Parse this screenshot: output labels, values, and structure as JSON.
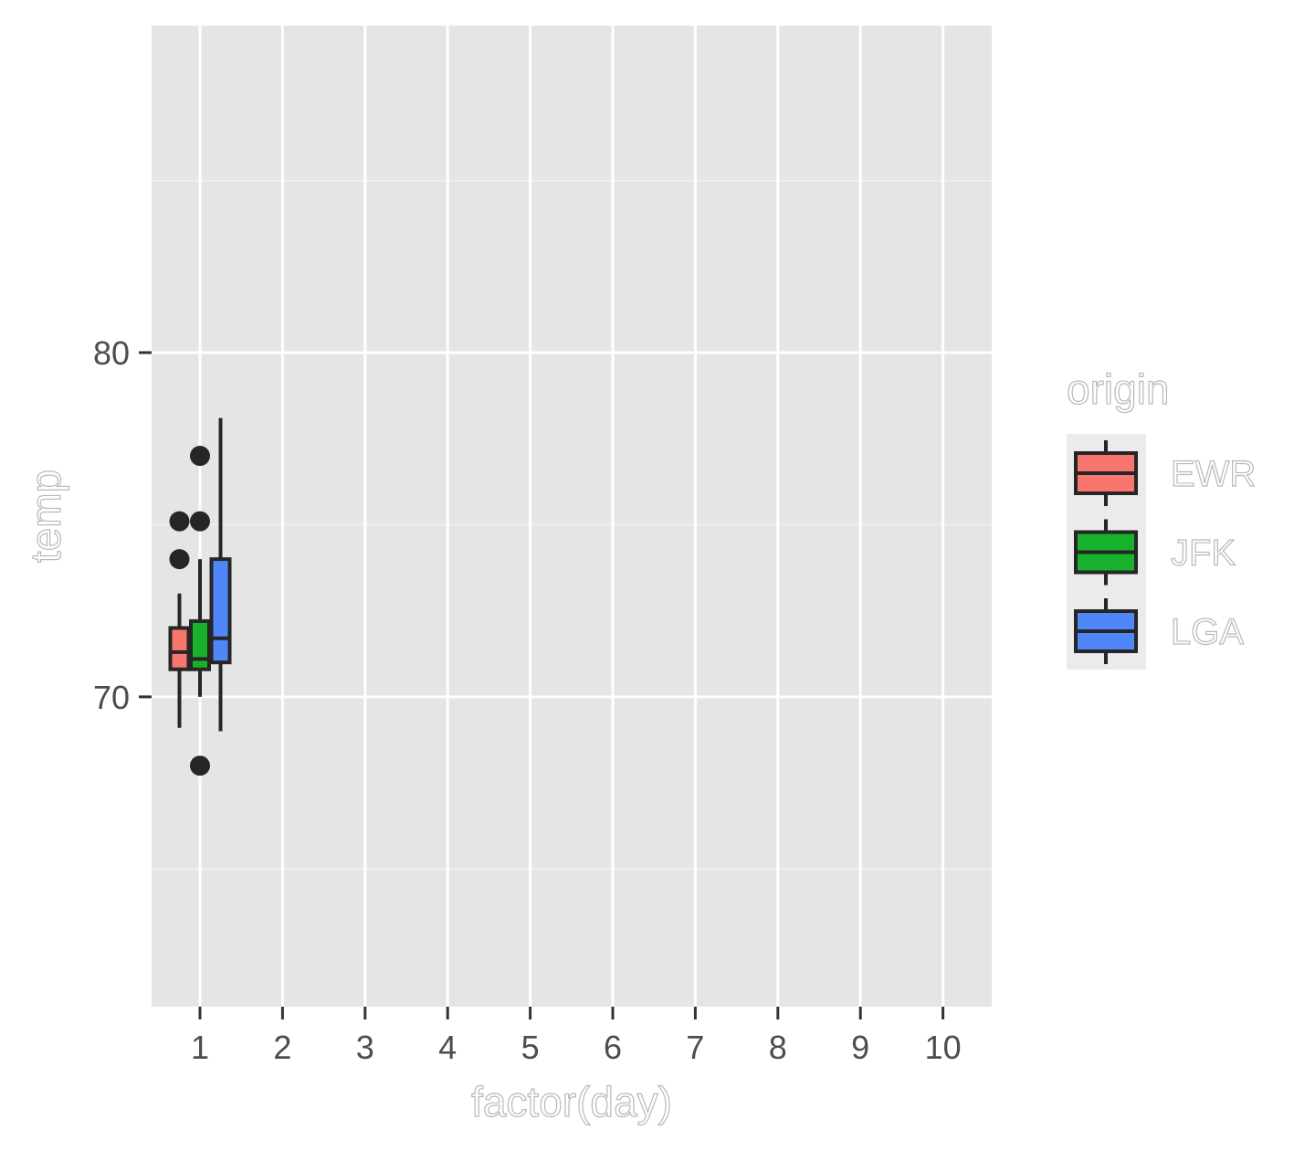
{
  "chart_data": {
    "type": "boxplot",
    "xlabel": "factor(day)",
    "ylabel": "temp",
    "categories": [
      "1",
      "2",
      "3",
      "4",
      "5",
      "6",
      "7",
      "8",
      "9",
      "10"
    ],
    "y_ticks": [
      70,
      80
    ],
    "ylim": [
      61,
      89.5
    ],
    "grid": true,
    "panel_background": "#e5e5e5",
    "legend": {
      "title": "origin",
      "position": "right",
      "entries": [
        "EWR",
        "JFK",
        "LGA"
      ]
    },
    "series": [
      {
        "name": "EWR",
        "color": "#f8766d",
        "boxes": [
          {
            "category": "1",
            "whisker_low": 69.1,
            "q1": 70.8,
            "median": 71.3,
            "q3": 72.0,
            "whisker_high": 73.0,
            "outliers": [
              74.0,
              75.1
            ]
          }
        ]
      },
      {
        "name": "JFK",
        "color": "#17b12b",
        "boxes": [
          {
            "category": "1",
            "whisker_low": 70.0,
            "q1": 70.8,
            "median": 71.1,
            "q3": 72.2,
            "whisker_high": 74.0,
            "outliers": [
              68.0,
              75.1,
              77.0
            ]
          }
        ]
      },
      {
        "name": "LGA",
        "color": "#5087f8",
        "boxes": [
          {
            "category": "1",
            "whisker_low": 69.0,
            "q1": 71.0,
            "median": 71.7,
            "q3": 74.0,
            "whisker_high": 78.1,
            "outliers": []
          }
        ]
      }
    ]
  }
}
